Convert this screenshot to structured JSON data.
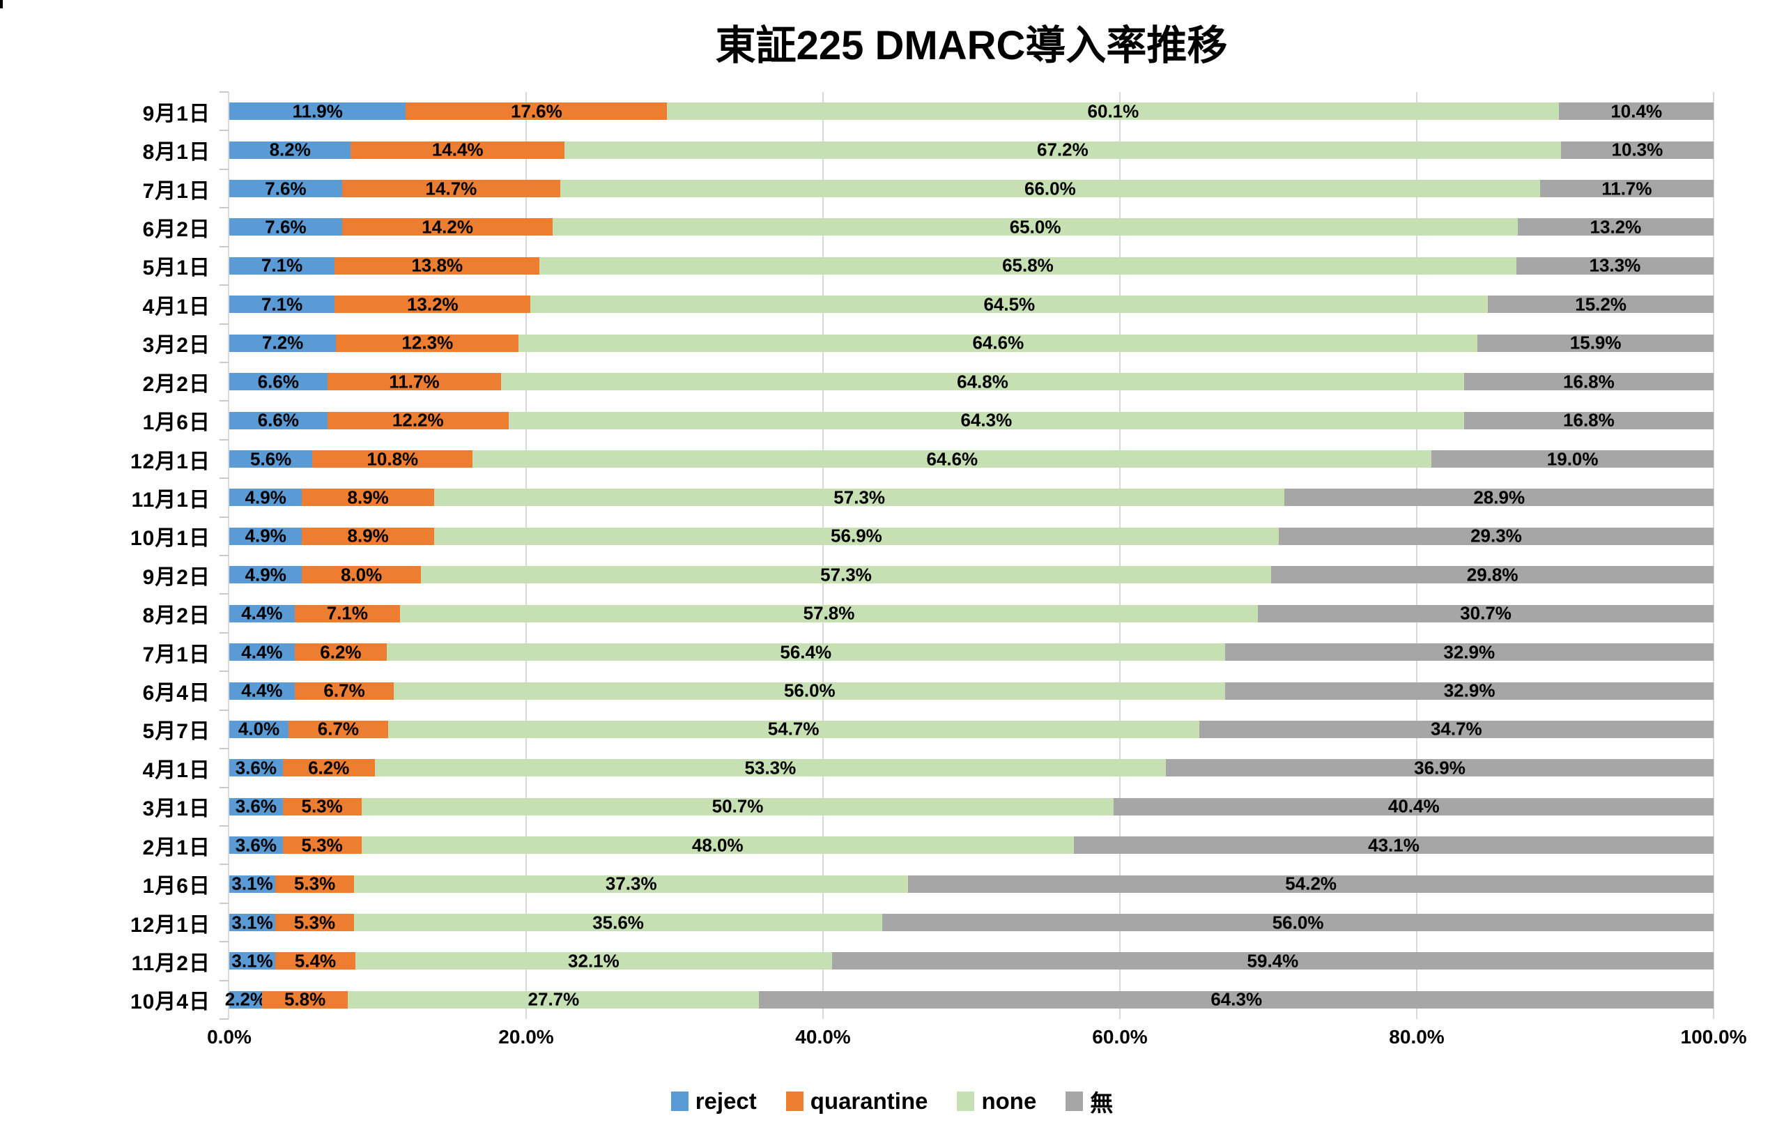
{
  "title": "東証225 DMARC導入率推移",
  "x_axis": {
    "tick_labels": [
      "0.0%",
      "20.0%",
      "40.0%",
      "60.0%",
      "80.0%",
      "100.0%"
    ],
    "min": 0,
    "max": 100
  },
  "legend": [
    {
      "name": "reject",
      "color": "#5B9BD5"
    },
    {
      "name": "quarantine",
      "color": "#ED7D31"
    },
    {
      "name": "none",
      "color": "#C6E0B4"
    },
    {
      "name": "無",
      "color": "#A6A6A6"
    }
  ],
  "colors": {
    "reject": "#5B9BD5",
    "quarantine": "#ED7D31",
    "none": "#C6E0B4",
    "no_record": "#A6A6A6",
    "gridline": "#D9D9D9",
    "label_text": "#000000"
  },
  "chart_data": {
    "type": "bar",
    "orientation": "horizontal-stacked",
    "title": "東証225 DMARC導入率推移",
    "xlabel": "",
    "ylabel": "",
    "xlim": [
      0,
      100
    ],
    "grid": true,
    "legend_position": "bottom",
    "value_label_format": "#.0%",
    "categories": [
      "9月1日",
      "8月1日",
      "7月1日",
      "6月2日",
      "5月1日",
      "4月1日",
      "3月2日",
      "2月2日",
      "1月6日",
      "12月1日",
      "11月1日",
      "10月1日",
      "9月2日",
      "8月2日",
      "7月1日",
      "6月4日",
      "5月7日",
      "4月1日",
      "3月1日",
      "2月1日",
      "1月6日",
      "12月1日",
      "11月2日",
      "10月4日"
    ],
    "series": [
      {
        "name": "reject",
        "color": "#5B9BD5",
        "values": [
          11.9,
          8.2,
          7.6,
          7.6,
          7.1,
          7.1,
          7.2,
          6.6,
          6.6,
          5.6,
          4.9,
          4.9,
          4.9,
          4.4,
          4.4,
          4.4,
          4.0,
          3.6,
          3.6,
          3.6,
          3.1,
          3.1,
          3.1,
          2.2
        ]
      },
      {
        "name": "quarantine",
        "color": "#ED7D31",
        "values": [
          17.6,
          14.4,
          14.7,
          14.2,
          13.8,
          13.2,
          12.3,
          11.7,
          12.2,
          10.8,
          8.9,
          8.9,
          8.0,
          7.1,
          6.2,
          6.7,
          6.7,
          6.2,
          5.3,
          5.3,
          5.3,
          5.3,
          5.4,
          5.8
        ]
      },
      {
        "name": "none",
        "color": "#C6E0B4",
        "values": [
          60.1,
          67.2,
          66.0,
          65.0,
          65.8,
          64.5,
          64.6,
          64.8,
          64.3,
          64.6,
          57.3,
          56.9,
          57.3,
          57.8,
          56.4,
          56.0,
          54.7,
          53.3,
          50.7,
          48.0,
          37.3,
          35.6,
          32.1,
          27.7
        ]
      },
      {
        "name": "無",
        "color": "#A6A6A6",
        "values": [
          10.4,
          10.3,
          11.7,
          13.2,
          13.3,
          15.2,
          15.9,
          16.8,
          16.8,
          19.0,
          28.9,
          29.3,
          29.8,
          30.7,
          32.9,
          32.9,
          34.7,
          36.9,
          40.4,
          43.1,
          54.2,
          56.0,
          59.4,
          64.3
        ]
      }
    ]
  }
}
